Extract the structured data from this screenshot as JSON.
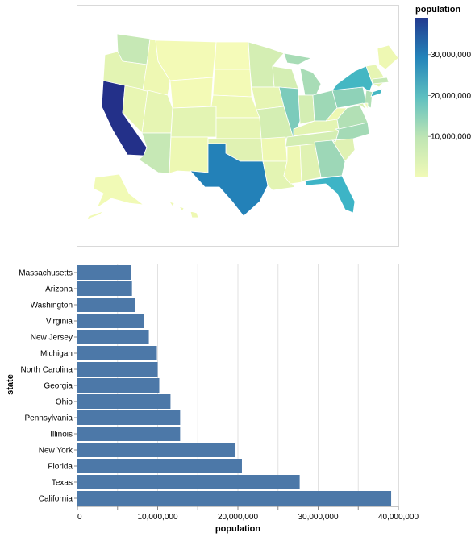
{
  "chart_data": [
    {
      "type": "choropleth",
      "legend": {
        "title": "population",
        "ticks": [
          10000000,
          20000000,
          30000000
        ],
        "tick_labels": [
          "10,000,000",
          "20,000,000",
          "30,000,000"
        ],
        "domain": [
          0,
          39000000
        ],
        "color_ramp": [
          "#ffffd9",
          "#edf8b1",
          "#c7e9b4",
          "#7fcdbb",
          "#41b6c4",
          "#1d91c0",
          "#225ea8",
          "#253494"
        ]
      }
    },
    {
      "type": "bar",
      "orientation": "horizontal",
      "categories": [
        "Massachusetts",
        "Arizona",
        "Washington",
        "Virginia",
        "New Jersey",
        "Michigan",
        "North Carolina",
        "Georgia",
        "Ohio",
        "Pennsylvania",
        "Illinois",
        "New York",
        "Florida",
        "Texas",
        "California"
      ],
      "values": [
        6700000,
        6800000,
        7200000,
        8300000,
        8900000,
        9900000,
        10000000,
        10200000,
        11600000,
        12800000,
        12800000,
        19700000,
        20500000,
        27700000,
        39100000
      ],
      "xlabel": "population",
      "ylabel": "state",
      "xlim": [
        0,
        40000000
      ],
      "x_ticks": [
        0,
        10000000,
        20000000,
        30000000,
        40000000
      ],
      "x_tick_labels": [
        "0",
        "10,000,000",
        "20,000,000",
        "30,000,000",
        "40,000,000"
      ],
      "bar_color": "#4c78a8",
      "grid": true
    }
  ]
}
